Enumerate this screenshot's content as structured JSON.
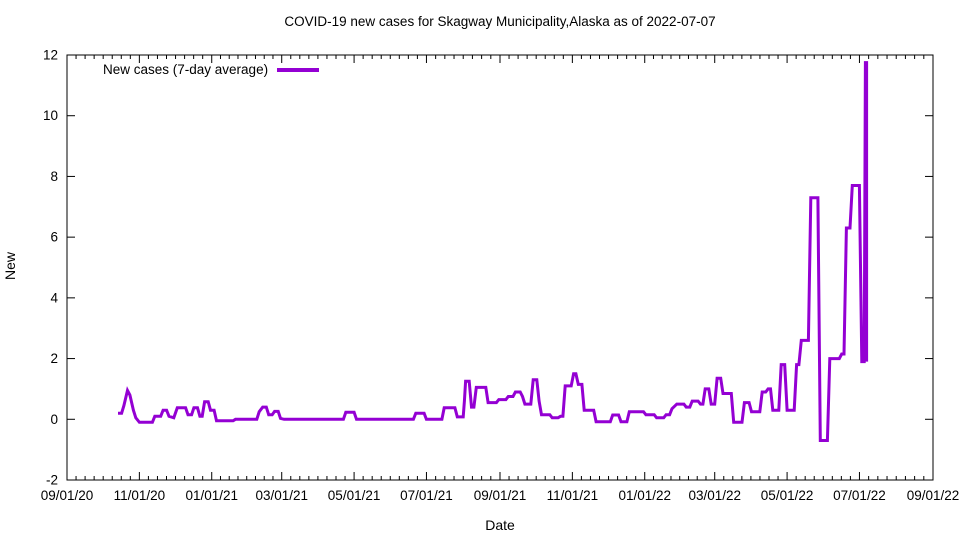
{
  "page": {
    "background": "#ffffff"
  },
  "chart_data": {
    "type": "line",
    "title": "COVID-19 new cases for Skagway Municipality,Alaska as of 2022-07-07",
    "xlabel": "Date",
    "ylabel": "New",
    "grid": false,
    "legend_position": "top-left-inside",
    "line_color": "#9400D3",
    "axis_color": "#000000",
    "ylim": [
      -2,
      12
    ],
    "y_ticks": [
      -2,
      0,
      2,
      4,
      6,
      8,
      10,
      12
    ],
    "x_range": [
      "2020-09-01",
      "2022-09-01"
    ],
    "x_ticks": [
      {
        "date": "2020-09-01",
        "label": "09/01/20"
      },
      {
        "date": "2020-11-01",
        "label": "11/01/20"
      },
      {
        "date": "2021-01-01",
        "label": "01/01/21"
      },
      {
        "date": "2021-03-01",
        "label": "03/01/21"
      },
      {
        "date": "2021-05-01",
        "label": "05/01/21"
      },
      {
        "date": "2021-07-01",
        "label": "07/01/21"
      },
      {
        "date": "2021-09-01",
        "label": "09/01/21"
      },
      {
        "date": "2021-11-01",
        "label": "11/01/21"
      },
      {
        "date": "2022-01-01",
        "label": "01/01/22"
      },
      {
        "date": "2022-03-01",
        "label": "03/01/22"
      },
      {
        "date": "2022-05-01",
        "label": "05/01/22"
      },
      {
        "date": "2022-07-01",
        "label": "07/01/22"
      },
      {
        "date": "2022-09-01",
        "label": "09/01/22"
      }
    ],
    "minor_ticks_per_interval": 8,
    "series": [
      {
        "name": "New cases (7-day average)",
        "color": "#9400D3",
        "points": [
          [
            "2020-10-14",
            0.2
          ],
          [
            "2020-10-17",
            0.2
          ],
          [
            "2020-10-19",
            0.45
          ],
          [
            "2020-10-22",
            0.95
          ],
          [
            "2020-10-24",
            0.8
          ],
          [
            "2020-10-27",
            0.3
          ],
          [
            "2020-10-29",
            0.05
          ],
          [
            "2020-11-01",
            -0.1
          ],
          [
            "2020-11-12",
            -0.1
          ],
          [
            "2020-11-14",
            0.1
          ],
          [
            "2020-11-19",
            0.1
          ],
          [
            "2020-11-21",
            0.3
          ],
          [
            "2020-11-24",
            0.3
          ],
          [
            "2020-11-26",
            0.1
          ],
          [
            "2020-11-30",
            0.05
          ],
          [
            "2020-12-03",
            0.38
          ],
          [
            "2020-12-10",
            0.38
          ],
          [
            "2020-12-12",
            0.15
          ],
          [
            "2020-12-15",
            0.15
          ],
          [
            "2020-12-17",
            0.38
          ],
          [
            "2020-12-20",
            0.38
          ],
          [
            "2020-12-22",
            0.1
          ],
          [
            "2020-12-24",
            0.1
          ],
          [
            "2020-12-26",
            0.58
          ],
          [
            "2020-12-29",
            0.58
          ],
          [
            "2020-12-31",
            0.3
          ],
          [
            "2021-01-03",
            0.3
          ],
          [
            "2021-01-05",
            -0.05
          ],
          [
            "2021-01-19",
            -0.05
          ],
          [
            "2021-01-21",
            0
          ],
          [
            "2021-02-08",
            0
          ],
          [
            "2021-02-10",
            0.25
          ],
          [
            "2021-02-13",
            0.4
          ],
          [
            "2021-02-16",
            0.4
          ],
          [
            "2021-02-18",
            0.15
          ],
          [
            "2021-02-21",
            0.15
          ],
          [
            "2021-02-23",
            0.26
          ],
          [
            "2021-02-26",
            0.26
          ],
          [
            "2021-02-28",
            0.03
          ],
          [
            "2021-03-03",
            0
          ],
          [
            "2021-04-22",
            0
          ],
          [
            "2021-04-24",
            0.23
          ],
          [
            "2021-05-01",
            0.23
          ],
          [
            "2021-05-03",
            0
          ],
          [
            "2021-06-20",
            0
          ],
          [
            "2021-06-22",
            0.2
          ],
          [
            "2021-06-29",
            0.2
          ],
          [
            "2021-07-01",
            0
          ],
          [
            "2021-07-14",
            0
          ],
          [
            "2021-07-16",
            0.38
          ],
          [
            "2021-07-25",
            0.38
          ],
          [
            "2021-07-27",
            0.08
          ],
          [
            "2021-08-01",
            0.08
          ],
          [
            "2021-08-02",
            0.6
          ],
          [
            "2021-08-03",
            1.25
          ],
          [
            "2021-08-06",
            1.25
          ],
          [
            "2021-08-08",
            0.4
          ],
          [
            "2021-08-10",
            0.4
          ],
          [
            "2021-08-12",
            1.05
          ],
          [
            "2021-08-20",
            1.05
          ],
          [
            "2021-08-22",
            0.55
          ],
          [
            "2021-08-29",
            0.55
          ],
          [
            "2021-08-31",
            0.65
          ],
          [
            "2021-09-06",
            0.65
          ],
          [
            "2021-09-08",
            0.75
          ],
          [
            "2021-09-12",
            0.75
          ],
          [
            "2021-09-14",
            0.9
          ],
          [
            "2021-09-18",
            0.9
          ],
          [
            "2021-09-20",
            0.75
          ],
          [
            "2021-09-22",
            0.5
          ],
          [
            "2021-09-27",
            0.5
          ],
          [
            "2021-09-29",
            1.3
          ],
          [
            "2021-10-02",
            1.3
          ],
          [
            "2021-10-04",
            0.6
          ],
          [
            "2021-10-06",
            0.15
          ],
          [
            "2021-10-13",
            0.15
          ],
          [
            "2021-10-15",
            0.05
          ],
          [
            "2021-10-20",
            0.05
          ],
          [
            "2021-10-22",
            0.1
          ],
          [
            "2021-10-24",
            0.1
          ],
          [
            "2021-10-26",
            1.1
          ],
          [
            "2021-10-31",
            1.1
          ],
          [
            "2021-11-02",
            1.5
          ],
          [
            "2021-11-04",
            1.5
          ],
          [
            "2021-11-06",
            1.15
          ],
          [
            "2021-11-09",
            1.15
          ],
          [
            "2021-11-11",
            0.3
          ],
          [
            "2021-11-19",
            0.3
          ],
          [
            "2021-11-21",
            -0.08
          ],
          [
            "2021-12-03",
            -0.08
          ],
          [
            "2021-12-05",
            0.14
          ],
          [
            "2021-12-10",
            0.14
          ],
          [
            "2021-12-12",
            -0.08
          ],
          [
            "2021-12-17",
            -0.08
          ],
          [
            "2021-12-19",
            0.25
          ],
          [
            "2021-12-31",
            0.25
          ],
          [
            "2022-01-02",
            0.15
          ],
          [
            "2022-01-09",
            0.15
          ],
          [
            "2022-01-11",
            0.05
          ],
          [
            "2022-01-17",
            0.05
          ],
          [
            "2022-01-19",
            0.15
          ],
          [
            "2022-01-22",
            0.15
          ],
          [
            "2022-01-24",
            0.35
          ],
          [
            "2022-01-28",
            0.5
          ],
          [
            "2022-02-03",
            0.5
          ],
          [
            "2022-02-05",
            0.4
          ],
          [
            "2022-02-08",
            0.4
          ],
          [
            "2022-02-10",
            0.6
          ],
          [
            "2022-02-15",
            0.6
          ],
          [
            "2022-02-17",
            0.5
          ],
          [
            "2022-02-19",
            0.5
          ],
          [
            "2022-02-21",
            1.0
          ],
          [
            "2022-02-24",
            1.0
          ],
          [
            "2022-02-26",
            0.5
          ],
          [
            "2022-03-01",
            0.5
          ],
          [
            "2022-03-03",
            1.35
          ],
          [
            "2022-03-06",
            1.35
          ],
          [
            "2022-03-08",
            0.85
          ],
          [
            "2022-03-15",
            0.85
          ],
          [
            "2022-03-17",
            -0.1
          ],
          [
            "2022-03-24",
            -0.1
          ],
          [
            "2022-03-26",
            0.55
          ],
          [
            "2022-03-30",
            0.55
          ],
          [
            "2022-04-01",
            0.25
          ],
          [
            "2022-04-08",
            0.25
          ],
          [
            "2022-04-10",
            0.9
          ],
          [
            "2022-04-13",
            0.9
          ],
          [
            "2022-04-15",
            1.0
          ],
          [
            "2022-04-17",
            1.0
          ],
          [
            "2022-04-19",
            0.3
          ],
          [
            "2022-04-24",
            0.3
          ],
          [
            "2022-04-26",
            1.8
          ],
          [
            "2022-04-29",
            1.8
          ],
          [
            "2022-05-01",
            0.3
          ],
          [
            "2022-05-07",
            0.3
          ],
          [
            "2022-05-09",
            1.8
          ],
          [
            "2022-05-11",
            1.8
          ],
          [
            "2022-05-13",
            2.6
          ],
          [
            "2022-05-19",
            2.6
          ],
          [
            "2022-05-21",
            7.3
          ],
          [
            "2022-05-27",
            7.3
          ],
          [
            "2022-05-29",
            -0.7
          ],
          [
            "2022-06-04",
            -0.7
          ],
          [
            "2022-06-06",
            2.0
          ],
          [
            "2022-06-14",
            2.0
          ],
          [
            "2022-06-16",
            2.15
          ],
          [
            "2022-06-18",
            2.15
          ],
          [
            "2022-06-20",
            6.3
          ],
          [
            "2022-06-23",
            6.3
          ],
          [
            "2022-06-25",
            7.7
          ],
          [
            "2022-07-01",
            7.7
          ],
          [
            "2022-07-03",
            1.9
          ],
          [
            "2022-07-05",
            1.9
          ],
          [
            "2022-07-06",
            11.75
          ],
          [
            "2022-07-07",
            11.75
          ],
          [
            "2022-07-07",
            1.9
          ]
        ]
      }
    ]
  },
  "legend": {
    "label": "New cases (7-day average)"
  }
}
